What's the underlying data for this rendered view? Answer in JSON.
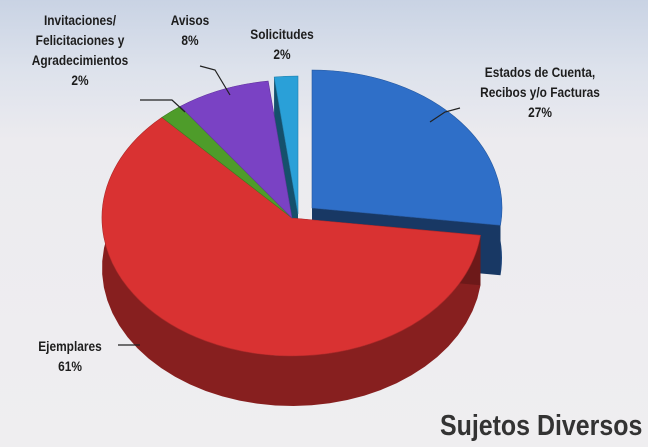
{
  "chart_data": {
    "type": "pie3d",
    "title": "Sujetos Diversos",
    "categories": [
      "Estados de Cuenta,\nRecibos y/o Facturas",
      "Ejemplares",
      "Invitaciones/\nFelicitaciones y\nAgradecimientos",
      "Avisos",
      "Solicitudes"
    ],
    "values": [
      27,
      61,
      2,
      8,
      2
    ],
    "value_labels": [
      "27%",
      "61%",
      "2%",
      "8%",
      "2%"
    ],
    "colors": [
      "#2f6fc8",
      "#d93232",
      "#4e9c2a",
      "#7a42c4",
      "#2aa0d8"
    ]
  }
}
